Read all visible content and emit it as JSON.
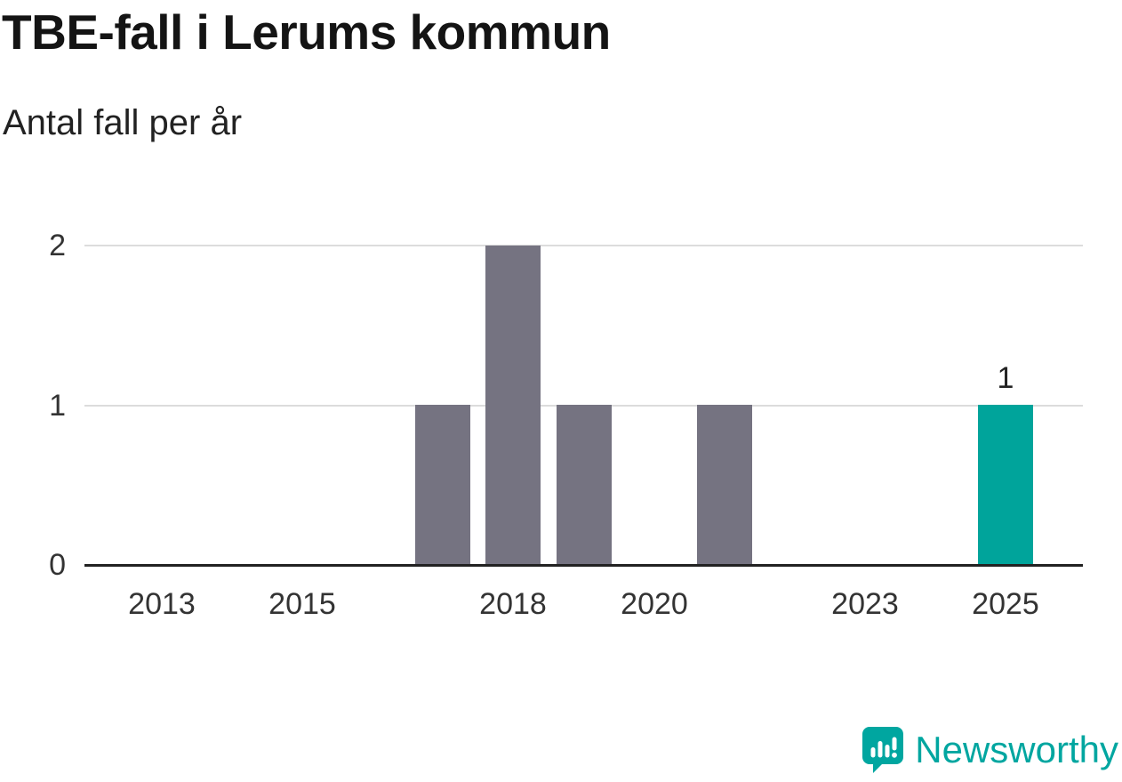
{
  "title": "TBE-fall i Lerums kommun",
  "subtitle": "Antal fall per år",
  "logo": {
    "text": "Newsworthy",
    "color": "#00a6a0"
  },
  "colors": {
    "bar_default": "#757381",
    "bar_highlight": "#00a49b",
    "gridline": "#dcdcdc",
    "axis_line": "#222222",
    "tick_text": "#333333"
  },
  "chart_data": {
    "type": "bar",
    "title": "TBE-fall i Lerums kommun",
    "subtitle": "Antal fall per år",
    "xlabel": "",
    "ylabel": "Antal fall per år",
    "x": [
      2012,
      2013,
      2014,
      2015,
      2016,
      2017,
      2018,
      2019,
      2020,
      2021,
      2022,
      2023,
      2024,
      2025
    ],
    "values": [
      0,
      0,
      0,
      0,
      0,
      1,
      2,
      1,
      0,
      1,
      0,
      0,
      0,
      1
    ],
    "highlight_x": 2025,
    "xticks": [
      2013,
      2015,
      2018,
      2020,
      2023,
      2025
    ],
    "yticks": [
      0,
      1,
      2
    ],
    "xlim": [
      2011.9,
      2026.1
    ],
    "ylim": [
      0,
      2.15
    ],
    "grid": "horizontal",
    "legend": "none",
    "annotations": [
      {
        "x": 2025,
        "y": 1,
        "label": "1"
      }
    ]
  }
}
